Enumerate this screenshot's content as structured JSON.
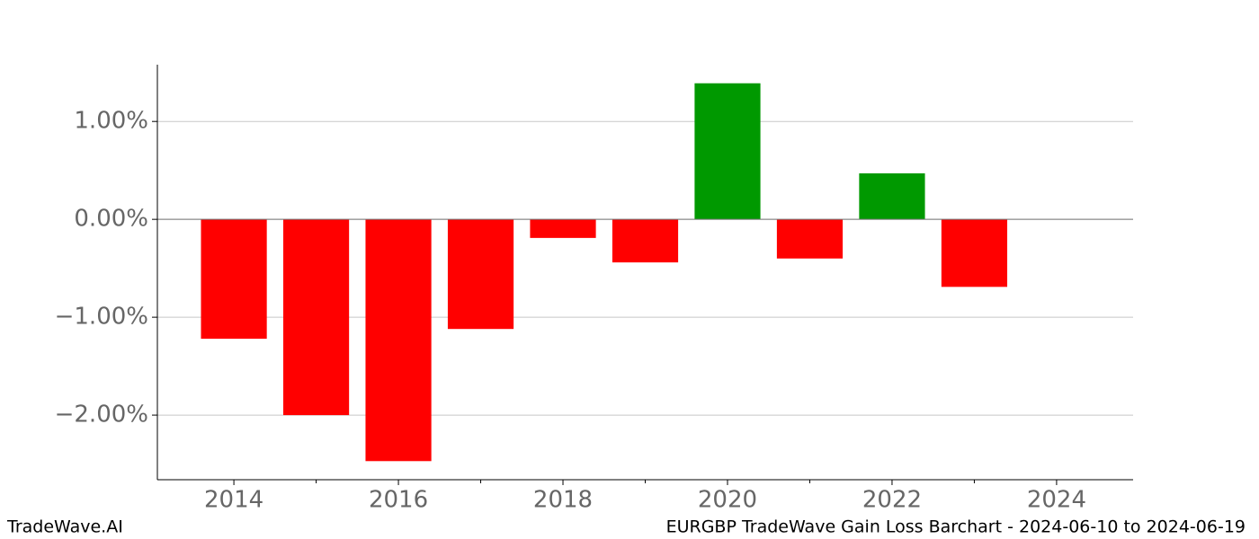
{
  "chart_data": {
    "type": "bar",
    "title": "EURGBP TradeWave Gain Loss Barchart - 2024-06-10 to 2024-06-19",
    "source": "TradeWave.AI",
    "x": [
      2014,
      2015,
      2016,
      2017,
      2018,
      2019,
      2020,
      2021,
      2022,
      2023
    ],
    "values": [
      -1.22,
      -2.0,
      -2.47,
      -1.12,
      -0.19,
      -0.44,
      1.39,
      -0.4,
      0.47,
      -0.69
    ],
    "positive_color": "#009900",
    "negative_color": "#ff0000",
    "xlim": [
      2013.07,
      2024.93
    ],
    "xticks": [
      2014,
      2016,
      2018,
      2020,
      2022,
      2024
    ],
    "xminorticks": [
      2015,
      2017,
      2019,
      2021,
      2023
    ],
    "ylim": [
      -2.66,
      1.58
    ],
    "yticks": [
      {
        "value": -2,
        "label": "−2.00%"
      },
      {
        "value": -1,
        "label": "−1.00%"
      },
      {
        "value": 0,
        "label": "0.00%"
      },
      {
        "value": 1,
        "label": "1.00%"
      }
    ],
    "grid": true
  }
}
